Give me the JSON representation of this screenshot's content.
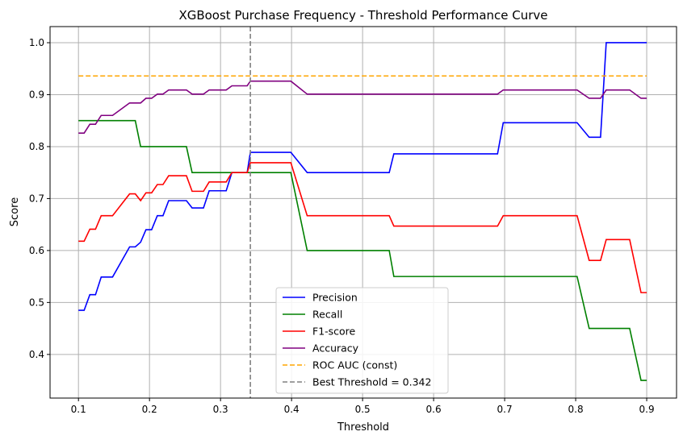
{
  "chart_data": {
    "type": "line",
    "title": "XGBoost Purchase Frequency - Threshold Performance Curve",
    "xlabel": "Threshold",
    "ylabel": "Score",
    "xlim": [
      0.06,
      0.942
    ],
    "ylim": [
      0.316,
      1.031
    ],
    "xticks": [
      0.1,
      0.2,
      0.3,
      0.4,
      0.5,
      0.6,
      0.7,
      0.8,
      0.9
    ],
    "xtick_labels": [
      "0.1",
      "0.2",
      "0.3",
      "0.4",
      "0.5",
      "0.6",
      "0.7",
      "0.8",
      "0.9"
    ],
    "yticks": [
      0.4,
      0.5,
      0.6,
      0.7,
      0.8,
      0.9,
      1.0
    ],
    "ytick_labels": [
      "0.4",
      "0.5",
      "0.6",
      "0.7",
      "0.8",
      "0.9",
      "1.0"
    ],
    "grid": true,
    "legend_position": "bottom-center",
    "series": [
      {
        "name": "Precision",
        "color": "#0000ff",
        "points": [
          [
            0.1,
            0.485
          ],
          [
            0.108,
            0.485
          ],
          [
            0.116,
            0.515
          ],
          [
            0.124,
            0.515
          ],
          [
            0.132,
            0.549
          ],
          [
            0.148,
            0.549
          ],
          [
            0.172,
            0.607
          ],
          [
            0.18,
            0.607
          ],
          [
            0.1875,
            0.616
          ],
          [
            0.195,
            0.64
          ],
          [
            0.203,
            0.64
          ],
          [
            0.211,
            0.667
          ],
          [
            0.219,
            0.667
          ],
          [
            0.227,
            0.696
          ],
          [
            0.252,
            0.696
          ],
          [
            0.26,
            0.682
          ],
          [
            0.276,
            0.682
          ],
          [
            0.284,
            0.715
          ],
          [
            0.308,
            0.715
          ],
          [
            0.316,
            0.75
          ],
          [
            0.3375,
            0.75
          ],
          [
            0.342,
            0.789
          ],
          [
            0.399,
            0.789
          ],
          [
            0.422,
            0.75
          ],
          [
            0.5375,
            0.75
          ],
          [
            0.544,
            0.786
          ],
          [
            0.69,
            0.786
          ],
          [
            0.698,
            0.846
          ],
          [
            0.802,
            0.846
          ],
          [
            0.819,
            0.818
          ],
          [
            0.835,
            0.818
          ],
          [
            0.843,
            1.0
          ],
          [
            0.9,
            1.0
          ]
        ]
      },
      {
        "name": "Recall",
        "color": "#008000",
        "points": [
          [
            0.1,
            0.85
          ],
          [
            0.18,
            0.85
          ],
          [
            0.1875,
            0.8
          ],
          [
            0.252,
            0.8
          ],
          [
            0.26,
            0.75
          ],
          [
            0.399,
            0.75
          ],
          [
            0.422,
            0.6
          ],
          [
            0.5375,
            0.6
          ],
          [
            0.544,
            0.55
          ],
          [
            0.802,
            0.55
          ],
          [
            0.819,
            0.45
          ],
          [
            0.876,
            0.45
          ],
          [
            0.892,
            0.35
          ],
          [
            0.9,
            0.35
          ]
        ]
      },
      {
        "name": "F1-score",
        "color": "#ff0000",
        "points": [
          [
            0.1,
            0.618
          ],
          [
            0.108,
            0.618
          ],
          [
            0.116,
            0.641
          ],
          [
            0.124,
            0.641
          ],
          [
            0.132,
            0.667
          ],
          [
            0.148,
            0.667
          ],
          [
            0.172,
            0.709
          ],
          [
            0.18,
            0.709
          ],
          [
            0.1875,
            0.696
          ],
          [
            0.195,
            0.711
          ],
          [
            0.203,
            0.711
          ],
          [
            0.211,
            0.727
          ],
          [
            0.219,
            0.727
          ],
          [
            0.227,
            0.744
          ],
          [
            0.252,
            0.744
          ],
          [
            0.26,
            0.714
          ],
          [
            0.276,
            0.714
          ],
          [
            0.284,
            0.732
          ],
          [
            0.308,
            0.732
          ],
          [
            0.316,
            0.75
          ],
          [
            0.3375,
            0.75
          ],
          [
            0.342,
            0.769
          ],
          [
            0.399,
            0.769
          ],
          [
            0.422,
            0.667
          ],
          [
            0.5375,
            0.667
          ],
          [
            0.544,
            0.647
          ],
          [
            0.69,
            0.647
          ],
          [
            0.698,
            0.667
          ],
          [
            0.802,
            0.667
          ],
          [
            0.819,
            0.581
          ],
          [
            0.835,
            0.581
          ],
          [
            0.843,
            0.621
          ],
          [
            0.876,
            0.621
          ],
          [
            0.892,
            0.519
          ],
          [
            0.9,
            0.519
          ]
        ]
      },
      {
        "name": "Accuracy",
        "color": "#800080",
        "points": [
          [
            0.1,
            0.826
          ],
          [
            0.108,
            0.826
          ],
          [
            0.116,
            0.843
          ],
          [
            0.124,
            0.843
          ],
          [
            0.132,
            0.86
          ],
          [
            0.148,
            0.86
          ],
          [
            0.172,
            0.884
          ],
          [
            0.1875,
            0.884
          ],
          [
            0.195,
            0.893
          ],
          [
            0.203,
            0.893
          ],
          [
            0.211,
            0.901
          ],
          [
            0.219,
            0.901
          ],
          [
            0.227,
            0.909
          ],
          [
            0.252,
            0.909
          ],
          [
            0.26,
            0.901
          ],
          [
            0.276,
            0.901
          ],
          [
            0.284,
            0.909
          ],
          [
            0.308,
            0.909
          ],
          [
            0.316,
            0.917
          ],
          [
            0.3375,
            0.917
          ],
          [
            0.342,
            0.926
          ],
          [
            0.399,
            0.926
          ],
          [
            0.422,
            0.901
          ],
          [
            0.69,
            0.901
          ],
          [
            0.698,
            0.909
          ],
          [
            0.802,
            0.909
          ],
          [
            0.819,
            0.893
          ],
          [
            0.835,
            0.893
          ],
          [
            0.843,
            0.909
          ],
          [
            0.876,
            0.909
          ],
          [
            0.892,
            0.893
          ],
          [
            0.9,
            0.893
          ]
        ]
      },
      {
        "name": "ROC AUC (const)",
        "color": "#ffa500",
        "dashed": true,
        "points": [
          [
            0.1,
            0.936
          ],
          [
            0.9,
            0.936
          ]
        ]
      }
    ],
    "vline": {
      "name": "Best Threshold = 0.342",
      "x": 0.342,
      "color": "#808080"
    }
  }
}
